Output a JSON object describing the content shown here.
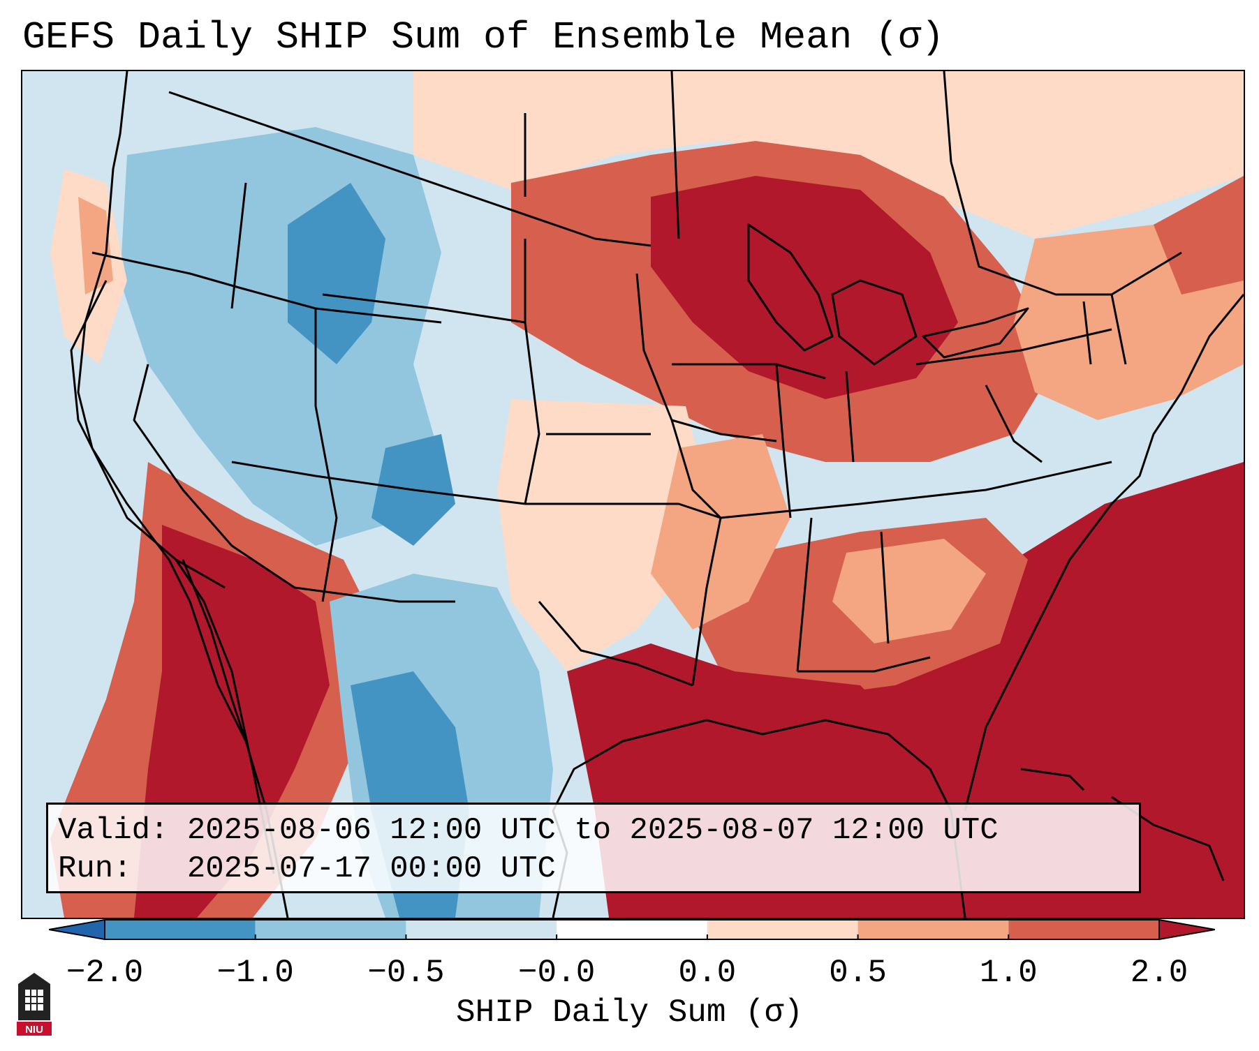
{
  "title": "GEFS Daily SHIP Sum of Ensemble Mean (σ)",
  "info": {
    "valid_line": "Valid: 2025-08-06 12:00 UTC to 2025-08-07 12:00 UTC",
    "run_line": "Run:   2025-07-17 00:00 UTC"
  },
  "colorbar": {
    "label": "SHIP Daily Sum (σ)",
    "ticks": [
      "−2.0",
      "−1.0",
      "−0.5",
      "−0.0",
      "0.0",
      "0.5",
      "1.0",
      "2.0"
    ],
    "colors": [
      "#2166ac",
      "#4393c3",
      "#92c5de",
      "#d1e5f0",
      "#fddbc7",
      "#f4a582",
      "#d6604d",
      "#b2182b"
    ],
    "neutral_color": "#ffffff",
    "extend": "both"
  },
  "logo": {
    "text": "NIU",
    "icon": "niu-tower-logo"
  }
}
